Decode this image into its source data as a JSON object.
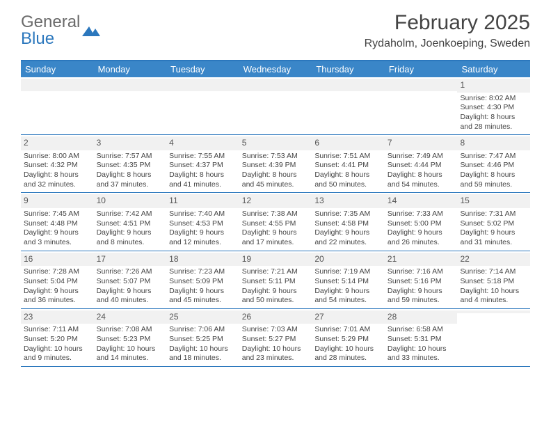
{
  "brand": {
    "name_gray": "General",
    "name_blue": "Blue"
  },
  "title": "February 2025",
  "location": "Rydaholm, Joenkoeping, Sweden",
  "colors": {
    "header_bar": "#3a86c8",
    "border": "#2b77bd",
    "daynum_bg": "#f1f1f1",
    "text": "#444444"
  },
  "weekdays": [
    "Sunday",
    "Monday",
    "Tuesday",
    "Wednesday",
    "Thursday",
    "Friday",
    "Saturday"
  ],
  "weeks": [
    [
      {
        "num": "",
        "lines": []
      },
      {
        "num": "",
        "lines": []
      },
      {
        "num": "",
        "lines": []
      },
      {
        "num": "",
        "lines": []
      },
      {
        "num": "",
        "lines": []
      },
      {
        "num": "",
        "lines": []
      },
      {
        "num": "1",
        "lines": [
          "Sunrise: 8:02 AM",
          "Sunset: 4:30 PM",
          "Daylight: 8 hours",
          "and 28 minutes."
        ]
      }
    ],
    [
      {
        "num": "2",
        "lines": [
          "Sunrise: 8:00 AM",
          "Sunset: 4:32 PM",
          "Daylight: 8 hours",
          "and 32 minutes."
        ]
      },
      {
        "num": "3",
        "lines": [
          "Sunrise: 7:57 AM",
          "Sunset: 4:35 PM",
          "Daylight: 8 hours",
          "and 37 minutes."
        ]
      },
      {
        "num": "4",
        "lines": [
          "Sunrise: 7:55 AM",
          "Sunset: 4:37 PM",
          "Daylight: 8 hours",
          "and 41 minutes."
        ]
      },
      {
        "num": "5",
        "lines": [
          "Sunrise: 7:53 AM",
          "Sunset: 4:39 PM",
          "Daylight: 8 hours",
          "and 45 minutes."
        ]
      },
      {
        "num": "6",
        "lines": [
          "Sunrise: 7:51 AM",
          "Sunset: 4:41 PM",
          "Daylight: 8 hours",
          "and 50 minutes."
        ]
      },
      {
        "num": "7",
        "lines": [
          "Sunrise: 7:49 AM",
          "Sunset: 4:44 PM",
          "Daylight: 8 hours",
          "and 54 minutes."
        ]
      },
      {
        "num": "8",
        "lines": [
          "Sunrise: 7:47 AM",
          "Sunset: 4:46 PM",
          "Daylight: 8 hours",
          "and 59 minutes."
        ]
      }
    ],
    [
      {
        "num": "9",
        "lines": [
          "Sunrise: 7:45 AM",
          "Sunset: 4:48 PM",
          "Daylight: 9 hours",
          "and 3 minutes."
        ]
      },
      {
        "num": "10",
        "lines": [
          "Sunrise: 7:42 AM",
          "Sunset: 4:51 PM",
          "Daylight: 9 hours",
          "and 8 minutes."
        ]
      },
      {
        "num": "11",
        "lines": [
          "Sunrise: 7:40 AM",
          "Sunset: 4:53 PM",
          "Daylight: 9 hours",
          "and 12 minutes."
        ]
      },
      {
        "num": "12",
        "lines": [
          "Sunrise: 7:38 AM",
          "Sunset: 4:55 PM",
          "Daylight: 9 hours",
          "and 17 minutes."
        ]
      },
      {
        "num": "13",
        "lines": [
          "Sunrise: 7:35 AM",
          "Sunset: 4:58 PM",
          "Daylight: 9 hours",
          "and 22 minutes."
        ]
      },
      {
        "num": "14",
        "lines": [
          "Sunrise: 7:33 AM",
          "Sunset: 5:00 PM",
          "Daylight: 9 hours",
          "and 26 minutes."
        ]
      },
      {
        "num": "15",
        "lines": [
          "Sunrise: 7:31 AM",
          "Sunset: 5:02 PM",
          "Daylight: 9 hours",
          "and 31 minutes."
        ]
      }
    ],
    [
      {
        "num": "16",
        "lines": [
          "Sunrise: 7:28 AM",
          "Sunset: 5:04 PM",
          "Daylight: 9 hours",
          "and 36 minutes."
        ]
      },
      {
        "num": "17",
        "lines": [
          "Sunrise: 7:26 AM",
          "Sunset: 5:07 PM",
          "Daylight: 9 hours",
          "and 40 minutes."
        ]
      },
      {
        "num": "18",
        "lines": [
          "Sunrise: 7:23 AM",
          "Sunset: 5:09 PM",
          "Daylight: 9 hours",
          "and 45 minutes."
        ]
      },
      {
        "num": "19",
        "lines": [
          "Sunrise: 7:21 AM",
          "Sunset: 5:11 PM",
          "Daylight: 9 hours",
          "and 50 minutes."
        ]
      },
      {
        "num": "20",
        "lines": [
          "Sunrise: 7:19 AM",
          "Sunset: 5:14 PM",
          "Daylight: 9 hours",
          "and 54 minutes."
        ]
      },
      {
        "num": "21",
        "lines": [
          "Sunrise: 7:16 AM",
          "Sunset: 5:16 PM",
          "Daylight: 9 hours",
          "and 59 minutes."
        ]
      },
      {
        "num": "22",
        "lines": [
          "Sunrise: 7:14 AM",
          "Sunset: 5:18 PM",
          "Daylight: 10 hours",
          "and 4 minutes."
        ]
      }
    ],
    [
      {
        "num": "23",
        "lines": [
          "Sunrise: 7:11 AM",
          "Sunset: 5:20 PM",
          "Daylight: 10 hours",
          "and 9 minutes."
        ]
      },
      {
        "num": "24",
        "lines": [
          "Sunrise: 7:08 AM",
          "Sunset: 5:23 PM",
          "Daylight: 10 hours",
          "and 14 minutes."
        ]
      },
      {
        "num": "25",
        "lines": [
          "Sunrise: 7:06 AM",
          "Sunset: 5:25 PM",
          "Daylight: 10 hours",
          "and 18 minutes."
        ]
      },
      {
        "num": "26",
        "lines": [
          "Sunrise: 7:03 AM",
          "Sunset: 5:27 PM",
          "Daylight: 10 hours",
          "and 23 minutes."
        ]
      },
      {
        "num": "27",
        "lines": [
          "Sunrise: 7:01 AM",
          "Sunset: 5:29 PM",
          "Daylight: 10 hours",
          "and 28 minutes."
        ]
      },
      {
        "num": "28",
        "lines": [
          "Sunrise: 6:58 AM",
          "Sunset: 5:31 PM",
          "Daylight: 10 hours",
          "and 33 minutes."
        ]
      },
      {
        "num": "",
        "lines": []
      }
    ]
  ]
}
